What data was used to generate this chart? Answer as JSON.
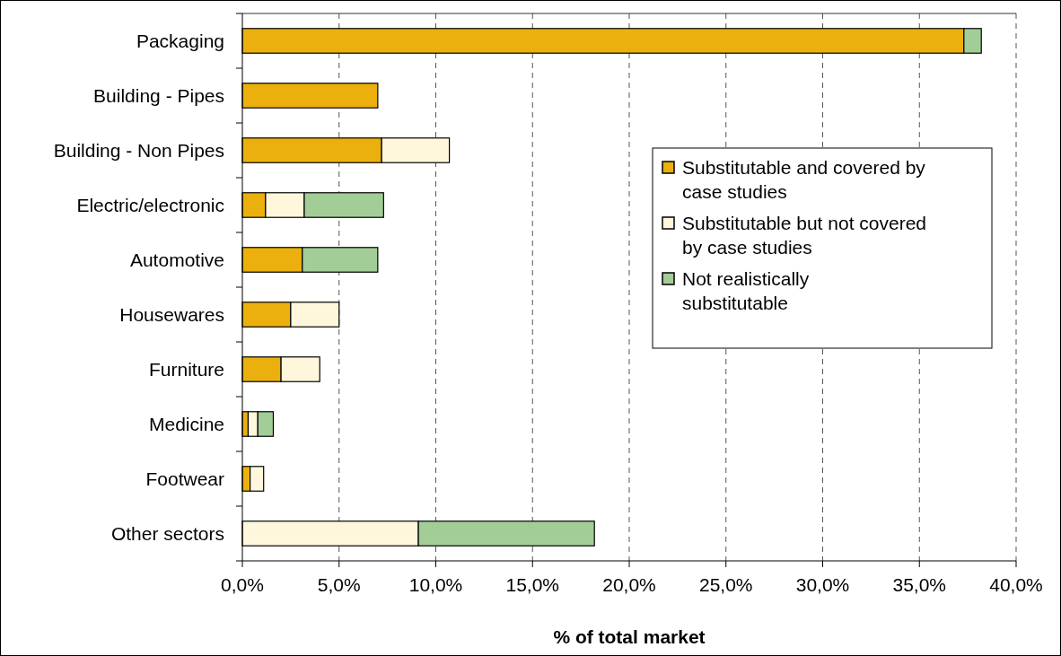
{
  "chart_data": {
    "type": "bar",
    "orientation": "horizontal",
    "stacked": true,
    "xlabel": "% of total market",
    "categories": [
      "Packaging",
      "Building - Pipes",
      "Building - Non Pipes",
      "Electric/electronic",
      "Automotive",
      "Housewares",
      "Furniture",
      "Medicine",
      "Footwear",
      "Other sectors"
    ],
    "series": [
      {
        "name": "Substitutable and covered by case studies",
        "color": "#ebb00d",
        "values": [
          37.3,
          7.0,
          7.2,
          1.2,
          3.1,
          2.5,
          2.0,
          0.3,
          0.4,
          0
        ]
      },
      {
        "name": "Substitutable but not covered by case studies",
        "color": "#fff7dc",
        "values": [
          0,
          0,
          3.5,
          2.0,
          0,
          2.5,
          2.0,
          0.5,
          0.7,
          9.1
        ]
      },
      {
        "name": "Not realistically substitutable",
        "color": "#a3cd97",
        "values": [
          0.9,
          0,
          0,
          4.1,
          3.9,
          0,
          0,
          0.8,
          0,
          9.1
        ]
      }
    ],
    "xlim": [
      0,
      40
    ],
    "xticks": [
      {
        "value": 0,
        "label": "0,0%"
      },
      {
        "value": 5,
        "label": "5,0%"
      },
      {
        "value": 10,
        "label": "10,0%"
      },
      {
        "value": 15,
        "label": "15,0%"
      },
      {
        "value": 20,
        "label": "20,0%"
      },
      {
        "value": 25,
        "label": "25,0%"
      },
      {
        "value": 30,
        "label": "30,0%"
      },
      {
        "value": 35,
        "label": "35,0%"
      },
      {
        "value": 40,
        "label": "40,0%"
      }
    ],
    "grid": "x",
    "legend": "right"
  }
}
